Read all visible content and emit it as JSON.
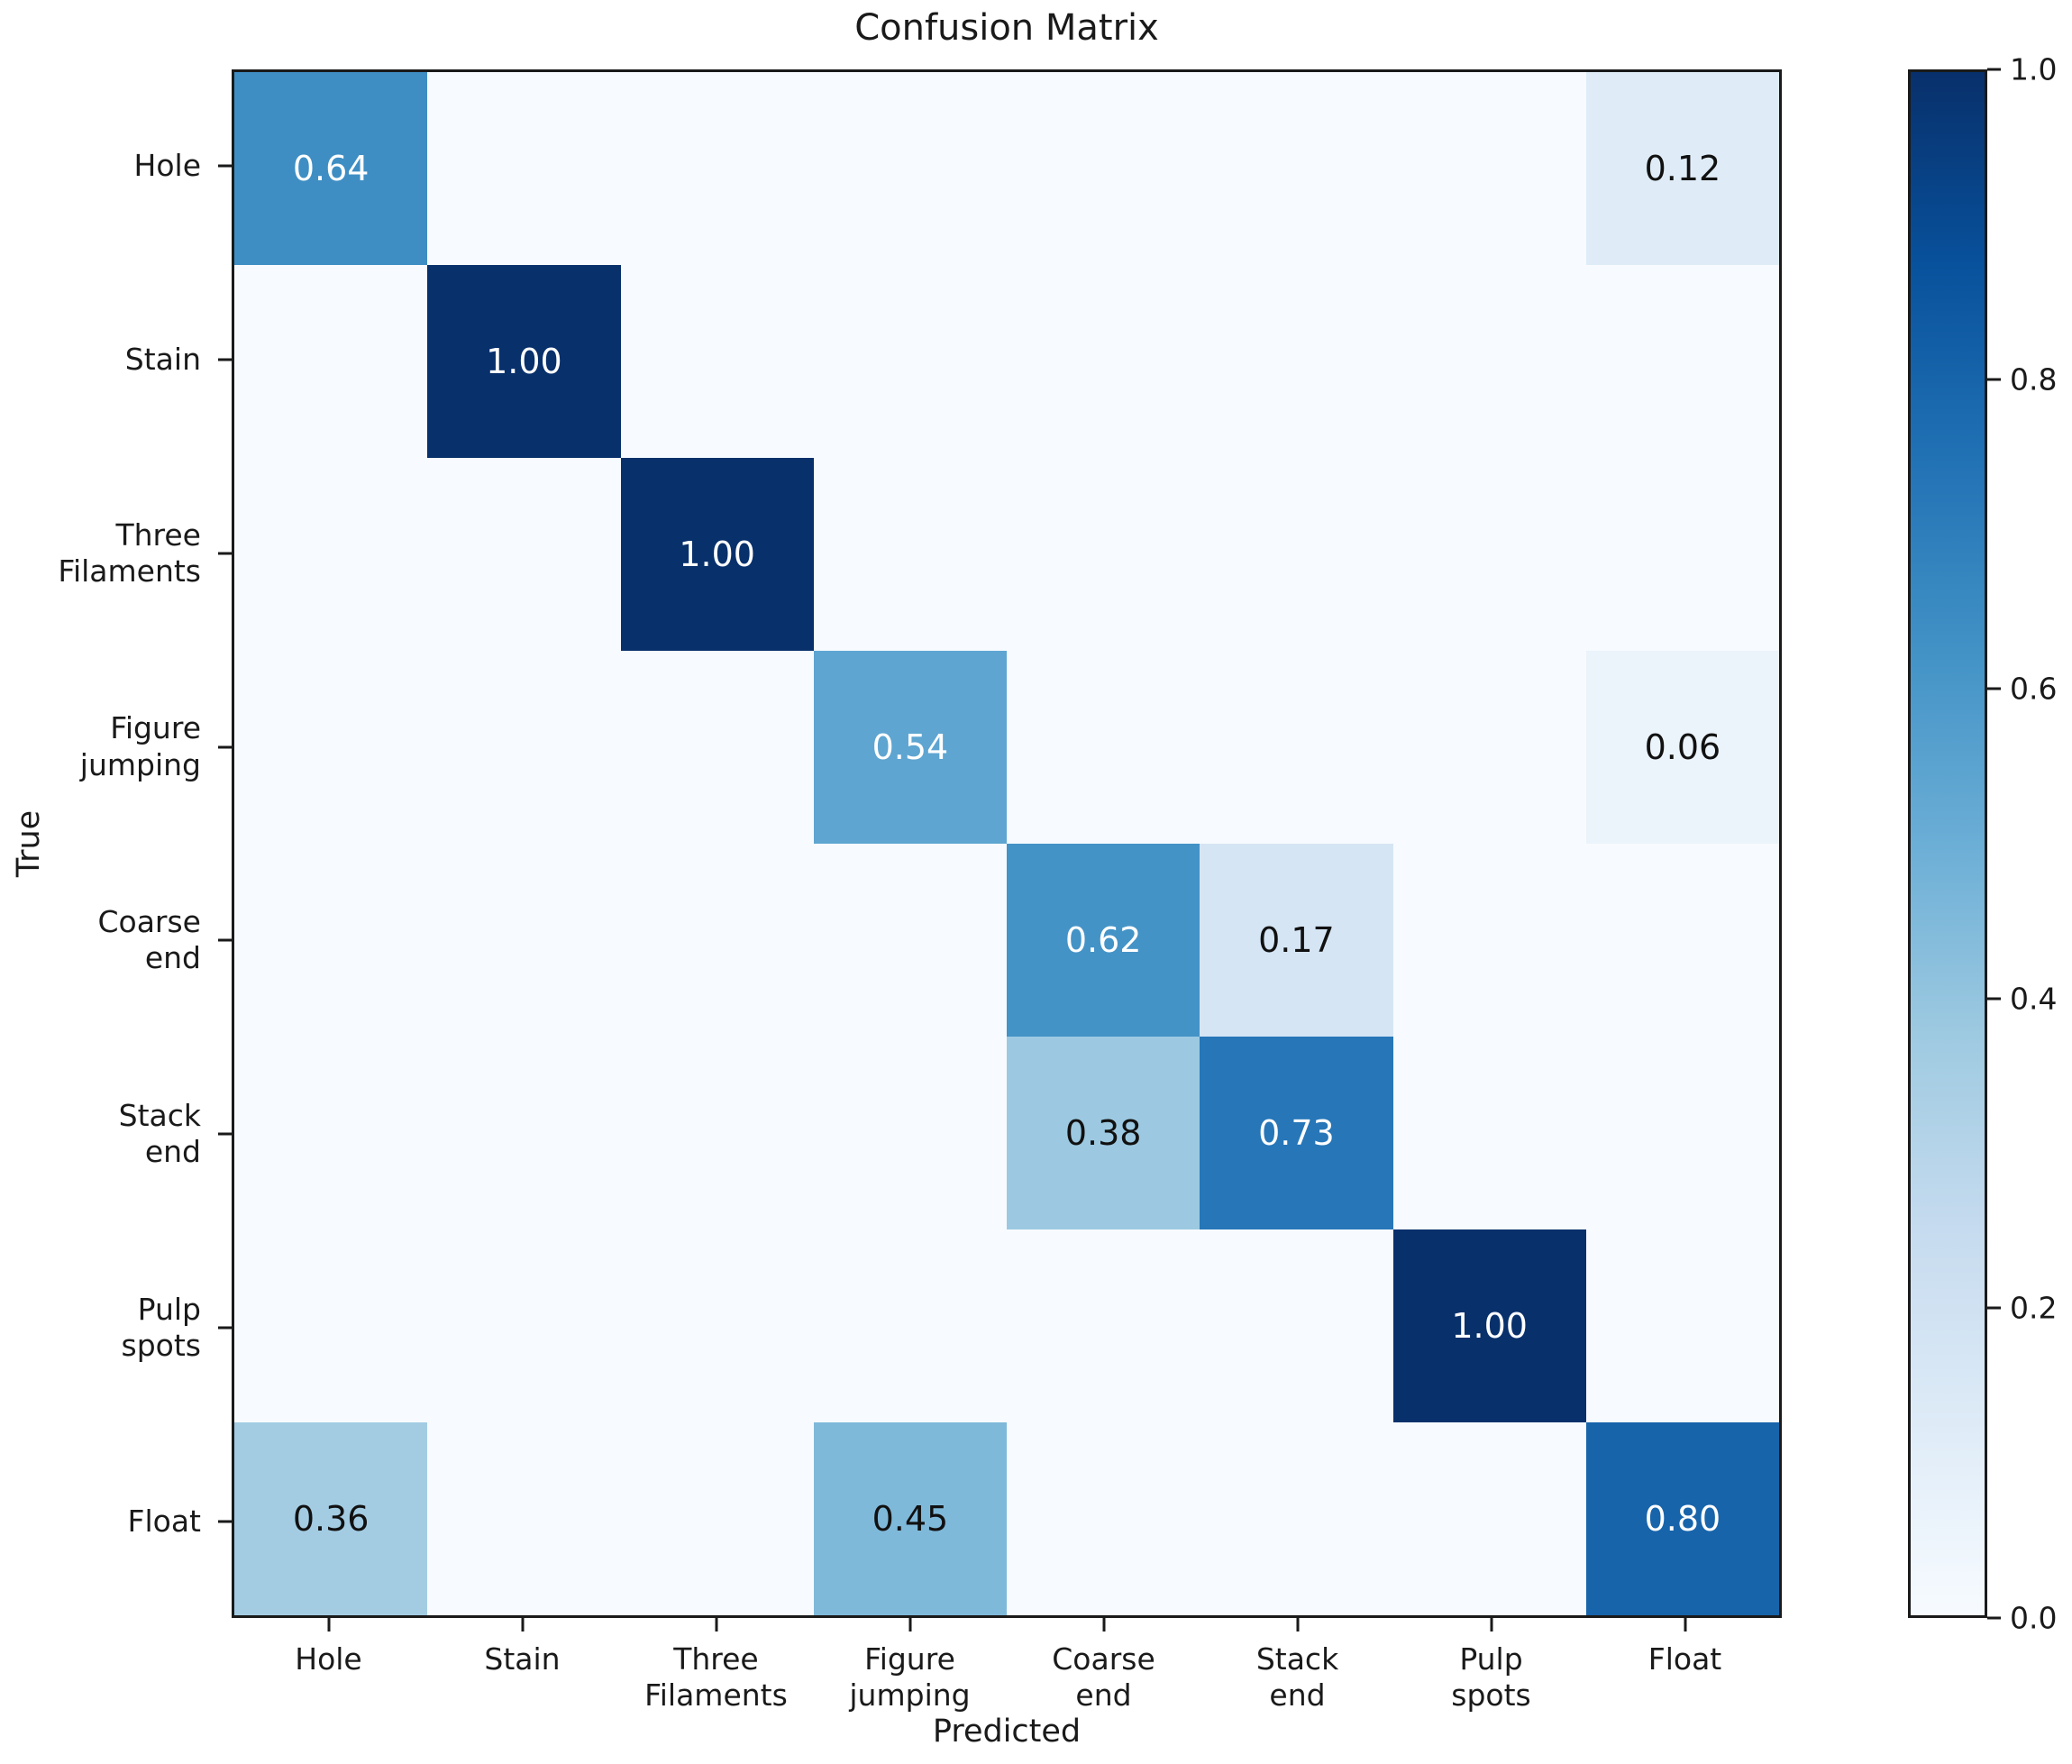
{
  "chart_data": {
    "type": "heatmap",
    "title": "Confusion Matrix",
    "xlabel": "Predicted",
    "ylabel": "True",
    "x_categories": [
      "Hole",
      "Stain",
      "Three\nFilaments",
      "Figure\njumping",
      "Coarse\nend",
      "Stack\nend",
      "Pulp\nspots",
      "Float"
    ],
    "y_categories": [
      "Hole",
      "Stain",
      "Three\nFilaments",
      "Figure\njumping",
      "Coarse\nend",
      "Stack\nend",
      "Pulp\nspots",
      "Float"
    ],
    "matrix": [
      [
        0.64,
        0.0,
        0.0,
        0.0,
        0.0,
        0.0,
        0.0,
        0.12
      ],
      [
        0.0,
        1.0,
        0.0,
        0.0,
        0.0,
        0.0,
        0.0,
        0.0
      ],
      [
        0.0,
        0.0,
        1.0,
        0.0,
        0.0,
        0.0,
        0.0,
        0.0
      ],
      [
        0.0,
        0.0,
        0.0,
        0.54,
        0.0,
        0.0,
        0.0,
        0.06
      ],
      [
        0.0,
        0.0,
        0.0,
        0.0,
        0.62,
        0.17,
        0.0,
        0.0
      ],
      [
        0.0,
        0.0,
        0.0,
        0.0,
        0.38,
        0.73,
        0.0,
        0.0
      ],
      [
        0.0,
        0.0,
        0.0,
        0.0,
        0.0,
        0.0,
        1.0,
        0.0
      ],
      [
        0.36,
        0.0,
        0.0,
        0.45,
        0.0,
        0.0,
        0.0,
        0.8
      ]
    ],
    "value_range": [
      0.0,
      1.0
    ],
    "value_decimals": 2,
    "annotation_visibility_threshold": 0.05,
    "text_color_switch_threshold": 0.5,
    "grid": false,
    "colorbar": {
      "position": "right",
      "tick_labels": [
        "1.0",
        "0.8",
        "0.6",
        "0.4",
        "0.2",
        "0.0"
      ],
      "colormap_name": "Blues",
      "colormap_stops": [
        "#f7fbff",
        "#deebf7",
        "#c6dbef",
        "#9ecae1",
        "#6baed6",
        "#4292c6",
        "#2171b5",
        "#08519c",
        "#08306b"
      ]
    }
  },
  "colors": {
    "figure_background": "#ffffff",
    "zero_cell": "#f7fbff",
    "spine": "#1a1a1a",
    "label_text": "#1a1a1a",
    "annotation_light": "#ffffff",
    "annotation_dark": "#111111"
  }
}
